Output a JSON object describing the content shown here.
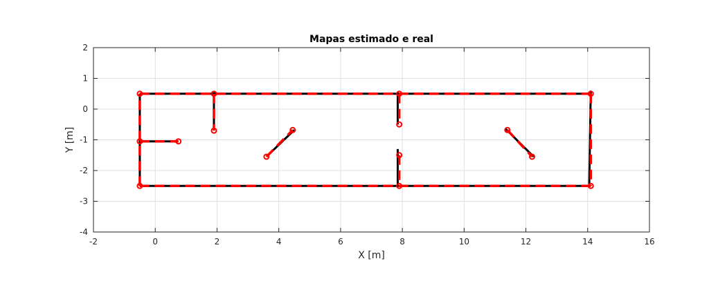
{
  "chart_data": {
    "type": "line",
    "title": "Mapas estimado e real",
    "xlabel": "X [m]",
    "ylabel": "Y [m]",
    "xlim": [
      -2,
      16
    ],
    "ylim": [
      -4,
      2
    ],
    "xticks": [
      -2,
      0,
      2,
      4,
      6,
      8,
      10,
      12,
      14,
      16
    ],
    "yticks": [
      -4,
      -3,
      -2,
      -1,
      0,
      1,
      2
    ],
    "grid": true,
    "colors": {
      "estimated": "#000000",
      "real": "#ff0000",
      "grid": "#dfdfdf",
      "axes": "#262626"
    },
    "series": [
      {
        "style": "solid",
        "color": "#000000",
        "segments": [
          [
            [
              -0.5,
              0.5
            ],
            [
              14.1,
              0.5
            ]
          ],
          [
            [
              14.1,
              0.6
            ],
            [
              14.05,
              -2.5
            ]
          ],
          [
            [
              14.05,
              -2.5
            ],
            [
              -0.5,
              -2.5
            ]
          ],
          [
            [
              -0.5,
              -2.5
            ],
            [
              -0.5,
              0.5
            ]
          ],
          [
            [
              1.9,
              0.55
            ],
            [
              1.9,
              -0.7
            ]
          ],
          [
            [
              -0.5,
              -1.05
            ],
            [
              0.75,
              -1.05
            ]
          ],
          [
            [
              3.6,
              -1.55
            ],
            [
              4.5,
              -0.68
            ]
          ],
          [
            [
              7.85,
              0.55
            ],
            [
              7.85,
              -0.5
            ]
          ],
          [
            [
              7.85,
              -1.3
            ],
            [
              7.85,
              -2.5
            ]
          ],
          [
            [
              11.35,
              -0.65
            ],
            [
              12.25,
              -1.55
            ]
          ]
        ]
      },
      {
        "style": "dashed",
        "color": "#ff0000",
        "segments": [
          [
            [
              -0.5,
              0.5
            ],
            [
              14.1,
              0.5
            ]
          ],
          [
            [
              14.1,
              0.5
            ],
            [
              14.1,
              -2.5
            ]
          ],
          [
            [
              14.1,
              -2.5
            ],
            [
              -0.5,
              -2.5
            ]
          ],
          [
            [
              -0.5,
              -2.5
            ],
            [
              -0.5,
              0.5
            ]
          ],
          [
            [
              1.9,
              0.5
            ],
            [
              1.9,
              -0.7
            ]
          ],
          [
            [
              -0.5,
              -1.05
            ],
            [
              0.75,
              -1.05
            ]
          ],
          [
            [
              3.6,
              -1.55
            ],
            [
              4.45,
              -0.68
            ]
          ],
          [
            [
              7.9,
              0.5
            ],
            [
              7.9,
              -0.5
            ]
          ],
          [
            [
              7.9,
              -1.5
            ],
            [
              7.9,
              -2.5
            ]
          ],
          [
            [
              11.4,
              -0.68
            ],
            [
              12.2,
              -1.55
            ]
          ]
        ],
        "markers": [
          [
            -0.5,
            0.5
          ],
          [
            14.1,
            0.5
          ],
          [
            14.1,
            -2.5
          ],
          [
            -0.5,
            -2.5
          ],
          [
            1.9,
            0.5
          ],
          [
            1.9,
            -0.7
          ],
          [
            -0.5,
            -1.05
          ],
          [
            0.75,
            -1.05
          ],
          [
            3.6,
            -1.55
          ],
          [
            4.45,
            -0.68
          ],
          [
            7.9,
            0.5
          ],
          [
            7.9,
            -0.5
          ],
          [
            7.9,
            -1.5
          ],
          [
            7.9,
            -2.5
          ],
          [
            11.4,
            -0.68
          ],
          [
            12.2,
            -1.55
          ]
        ]
      }
    ]
  }
}
